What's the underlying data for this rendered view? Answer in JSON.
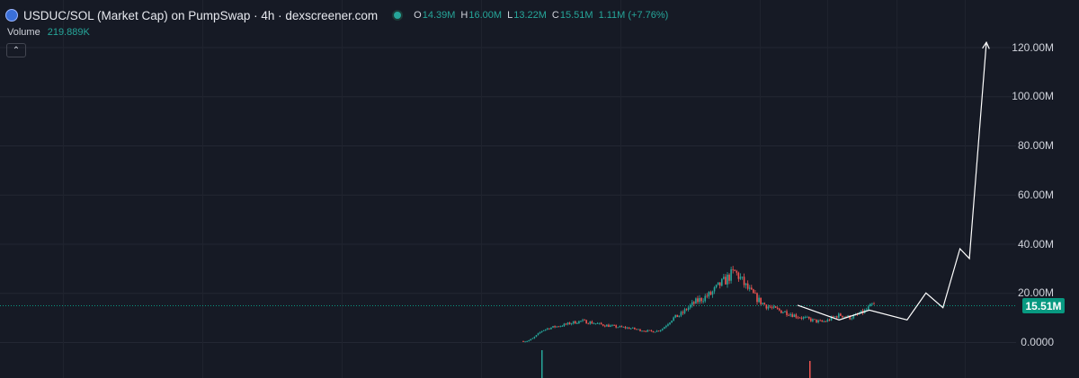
{
  "header": {
    "title": "USDUC/SOL (Market Cap) on PumpSwap · 4h · dexscreener.com",
    "ohlc": [
      {
        "key": "O",
        "value": "14.39M"
      },
      {
        "key": "H",
        "value": "16.00M"
      },
      {
        "key": "L",
        "value": "13.22M"
      },
      {
        "key": "C",
        "value": "15.51M"
      }
    ],
    "change": "1.11M (+7.76%)"
  },
  "volume": {
    "label": "Volume",
    "value": "219.889K"
  },
  "icons": {
    "symbol": "token-logo-icon",
    "status": "market-status-dot-icon",
    "collapse": "chevron-up-icon"
  },
  "colors": {
    "background": "#161a25",
    "up": "#26a69a",
    "down": "#ef5350",
    "badge": "#089981",
    "drawing": "#ffffff"
  },
  "price_badge": "15.51M",
  "chart_data": {
    "type": "candlestick",
    "timeframe": "4h",
    "y_axis": {
      "ticks": [
        "120.00M",
        "100.00M",
        "80.00M",
        "60.00M",
        "40.00M",
        "20.00M",
        "0.0000"
      ],
      "tick_values": [
        120,
        100,
        80,
        60,
        40,
        20,
        0
      ],
      "unit": "M",
      "range": [
        -6,
        136
      ]
    },
    "last_price": 15.51,
    "price_series": [
      0.3,
      0.5,
      1.5,
      3.2,
      4.8,
      5.5,
      6.0,
      6.4,
      6.8,
      7.2,
      7.8,
      8.2,
      8.5,
      8.3,
      8.0,
      7.6,
      7.2,
      6.9,
      6.6,
      6.3,
      6.1,
      5.9,
      5.7,
      5.4,
      5.0,
      4.7,
      4.5,
      4.3,
      4.6,
      5.5,
      7.5,
      9.5,
      10.5,
      11.5,
      13.5,
      15.0,
      16.5,
      17.5,
      18.5,
      19.5,
      21.5,
      23.5,
      25.0,
      27.0,
      28.5,
      26.5,
      23.5,
      21.0,
      19.0,
      17.0,
      15.5,
      14.5,
      13.5,
      13.0,
      12.5,
      12.0,
      11.2,
      10.5,
      10.0,
      9.5,
      9.0,
      8.5,
      8.2,
      8.5,
      9.5,
      10.5,
      11.0,
      10.5,
      10.0,
      10.5,
      11.5,
      12.5,
      14.0,
      15.51
    ],
    "projection_drawing": [
      [
        0,
        15.0
      ],
      [
        0.22,
        9.0
      ],
      [
        0.38,
        13.0
      ],
      [
        0.58,
        9.0
      ],
      [
        0.68,
        20.0
      ],
      [
        0.77,
        14.0
      ],
      [
        0.86,
        38.0
      ],
      [
        0.91,
        34.0
      ],
      [
        1.0,
        122.0
      ]
    ]
  }
}
